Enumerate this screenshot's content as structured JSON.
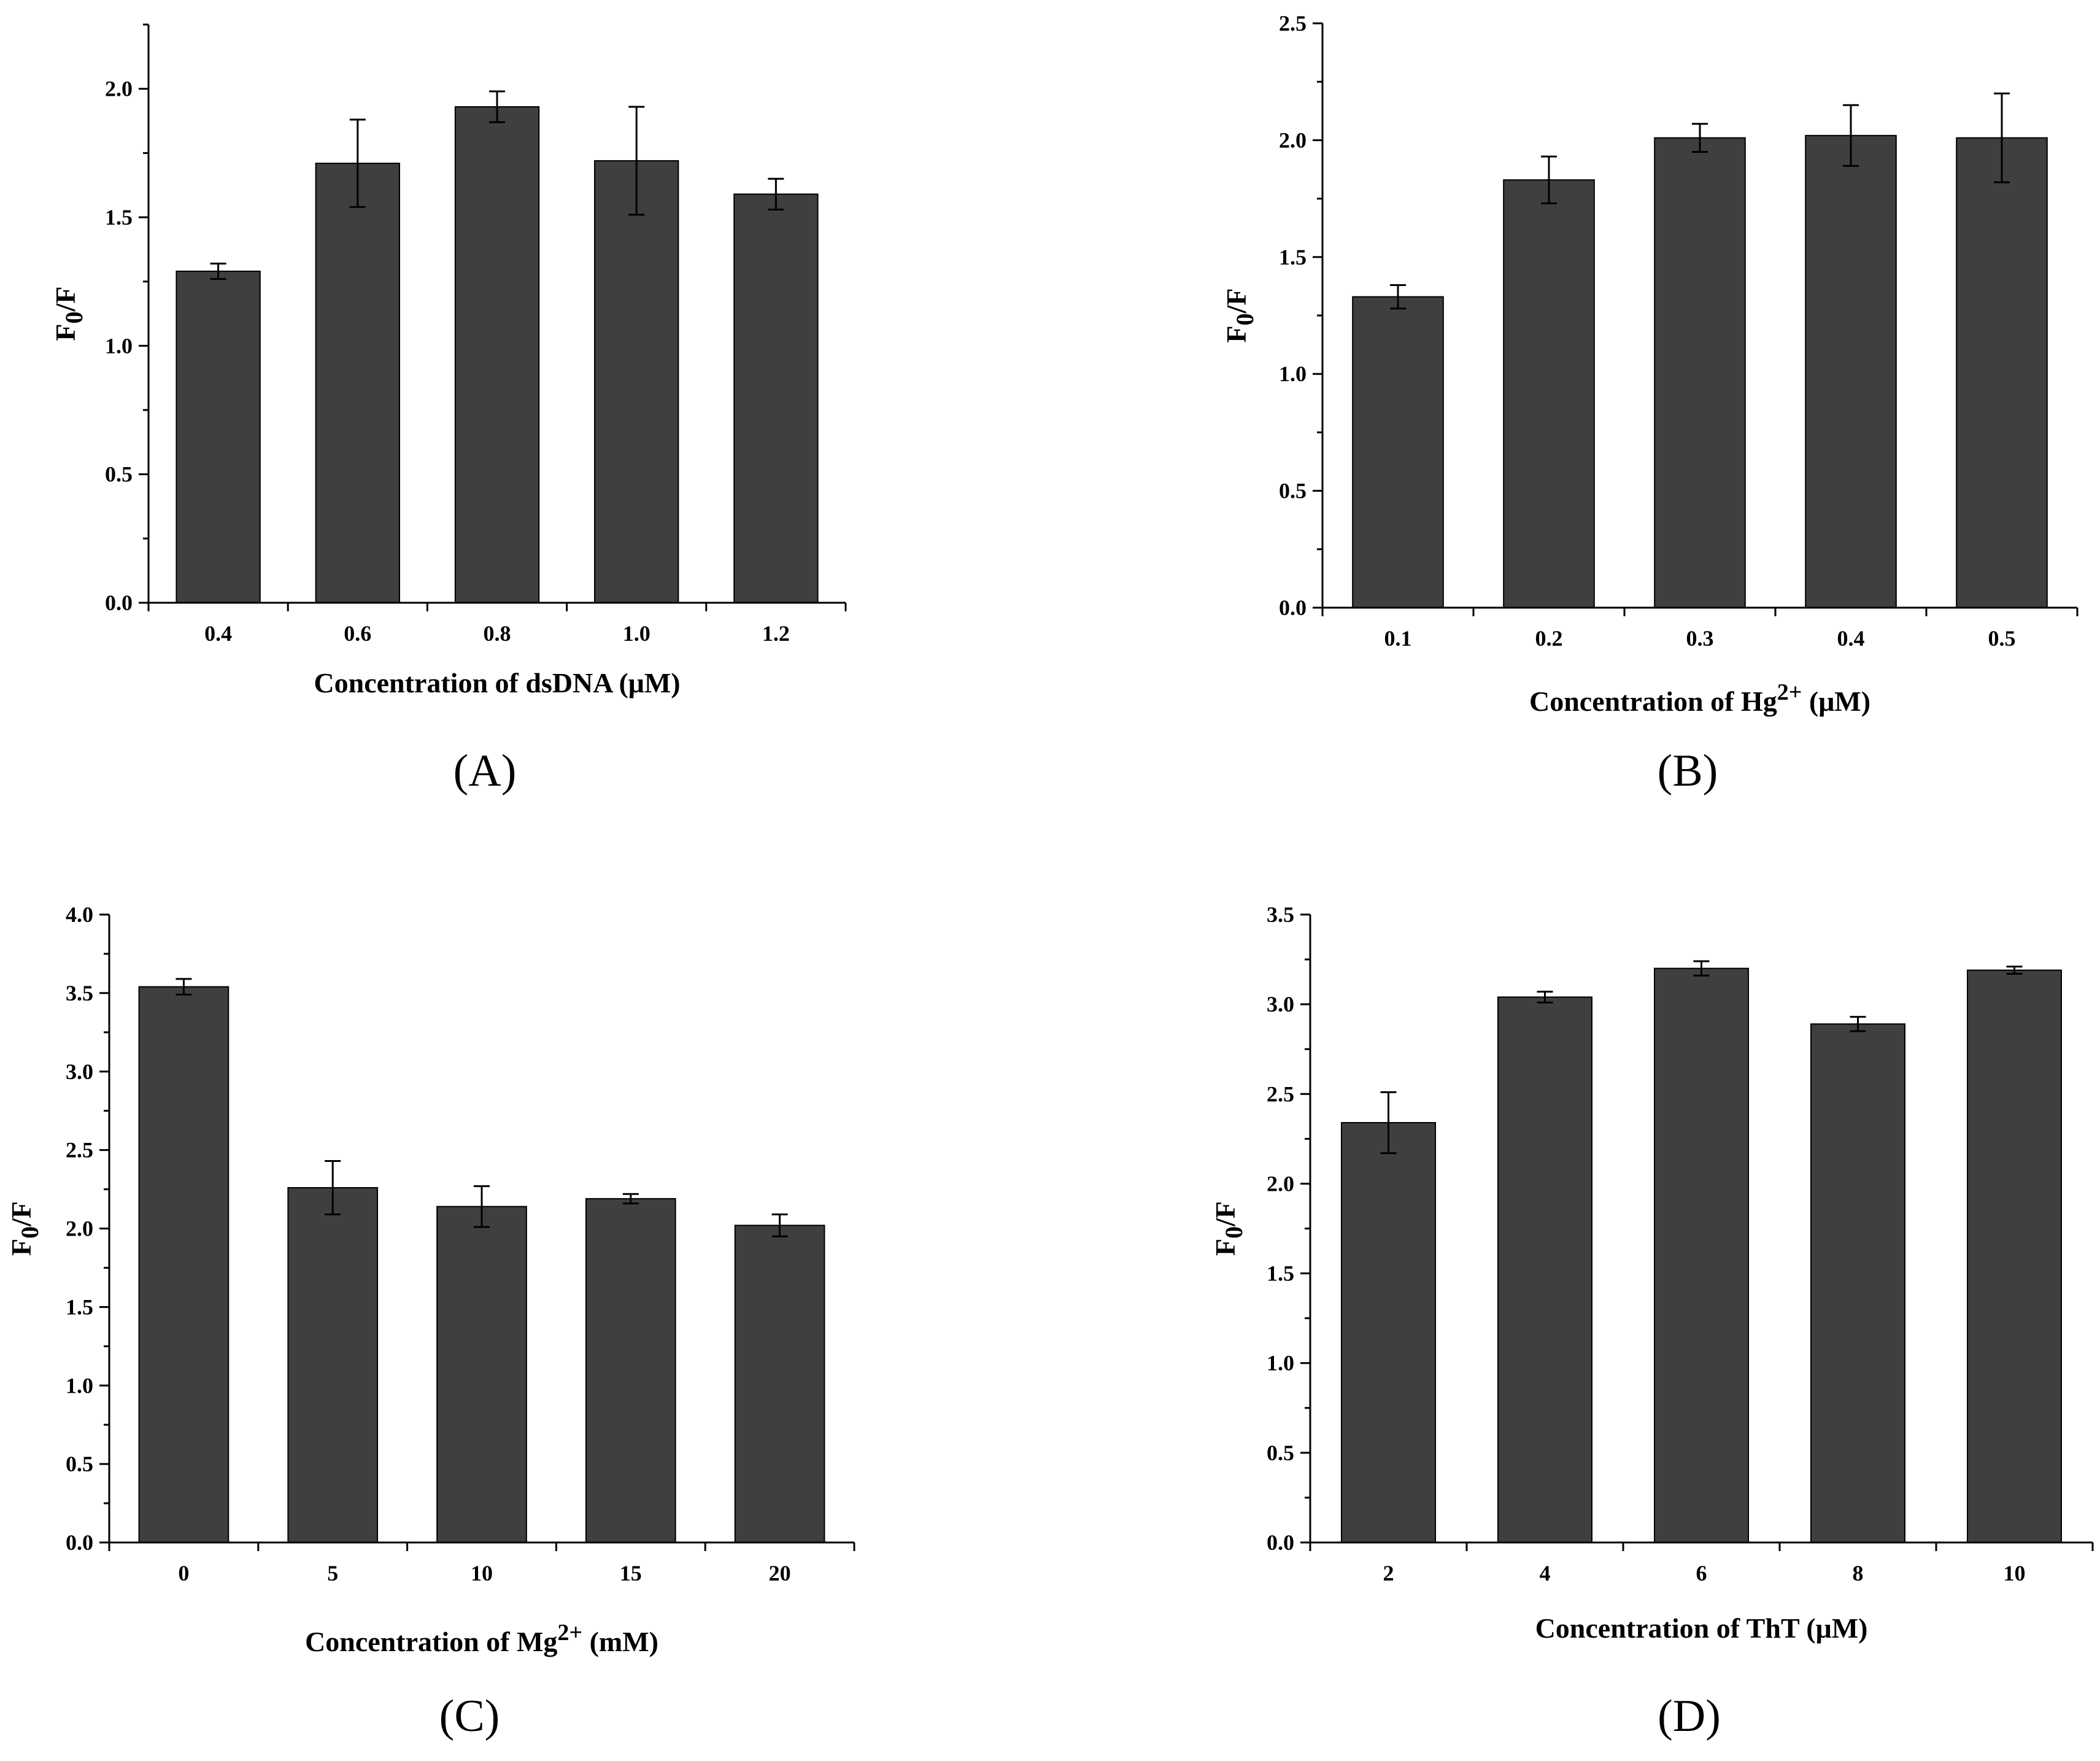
{
  "chart_data": [
    {
      "type": "bar",
      "panel_label": "(A)",
      "categories": [
        "0.4",
        "0.6",
        "0.8",
        "1.0",
        "1.2"
      ],
      "values": [
        1.29,
        1.71,
        1.93,
        1.72,
        1.59
      ],
      "errors": [
        0.03,
        0.17,
        0.06,
        0.21,
        0.06
      ],
      "xlabel": "Concentration of dsDNA (μM)",
      "ylabel": "F0/F",
      "ylim": [
        0,
        2.25
      ],
      "yticks": [
        "0.0",
        "0.5",
        "1.0",
        "1.5",
        "2.0"
      ],
      "bar_color": "#3f3f3f"
    },
    {
      "type": "bar",
      "panel_label": "(B)",
      "categories": [
        "0.1",
        "0.2",
        "0.3",
        "0.4",
        "0.5"
      ],
      "values": [
        1.33,
        1.83,
        2.01,
        2.02,
        2.01
      ],
      "errors": [
        0.05,
        0.1,
        0.06,
        0.13,
        0.19
      ],
      "xlabel": "Concentration of Hg2+ (μM)",
      "ylabel": "F0/F",
      "ylim": [
        0,
        2.5
      ],
      "yticks": [
        "0.0",
        "0.5",
        "1.0",
        "1.5",
        "2.0",
        "2.5"
      ],
      "bar_color": "#3f3f3f"
    },
    {
      "type": "bar",
      "panel_label": "(C)",
      "categories": [
        "0",
        "5",
        "10",
        "15",
        "20"
      ],
      "values": [
        3.54,
        2.26,
        2.14,
        2.19,
        2.02
      ],
      "errors": [
        0.05,
        0.17,
        0.13,
        0.03,
        0.07
      ],
      "xlabel": "Concentration of Mg2+ (mM)",
      "ylabel": "F0/F",
      "ylim": [
        0,
        4.0
      ],
      "yticks": [
        "0.0",
        "0.5",
        "1.0",
        "1.5",
        "2.0",
        "2.5",
        "3.0",
        "3.5",
        "4.0"
      ],
      "bar_color": "#3f3f3f"
    },
    {
      "type": "bar",
      "panel_label": "(D)",
      "categories": [
        "2",
        "4",
        "6",
        "8",
        "10"
      ],
      "values": [
        2.34,
        3.04,
        3.2,
        2.89,
        3.19
      ],
      "errors": [
        0.17,
        0.03,
        0.04,
        0.04,
        0.02
      ],
      "xlabel": "Concentration of ThT (μM)",
      "ylabel": "F0/F",
      "ylim": [
        0,
        3.5
      ],
      "yticks": [
        "0.0",
        "0.5",
        "1.0",
        "1.5",
        "2.0",
        "2.5",
        "3.0",
        "3.5"
      ],
      "bar_color": "#3f3f3f"
    }
  ]
}
